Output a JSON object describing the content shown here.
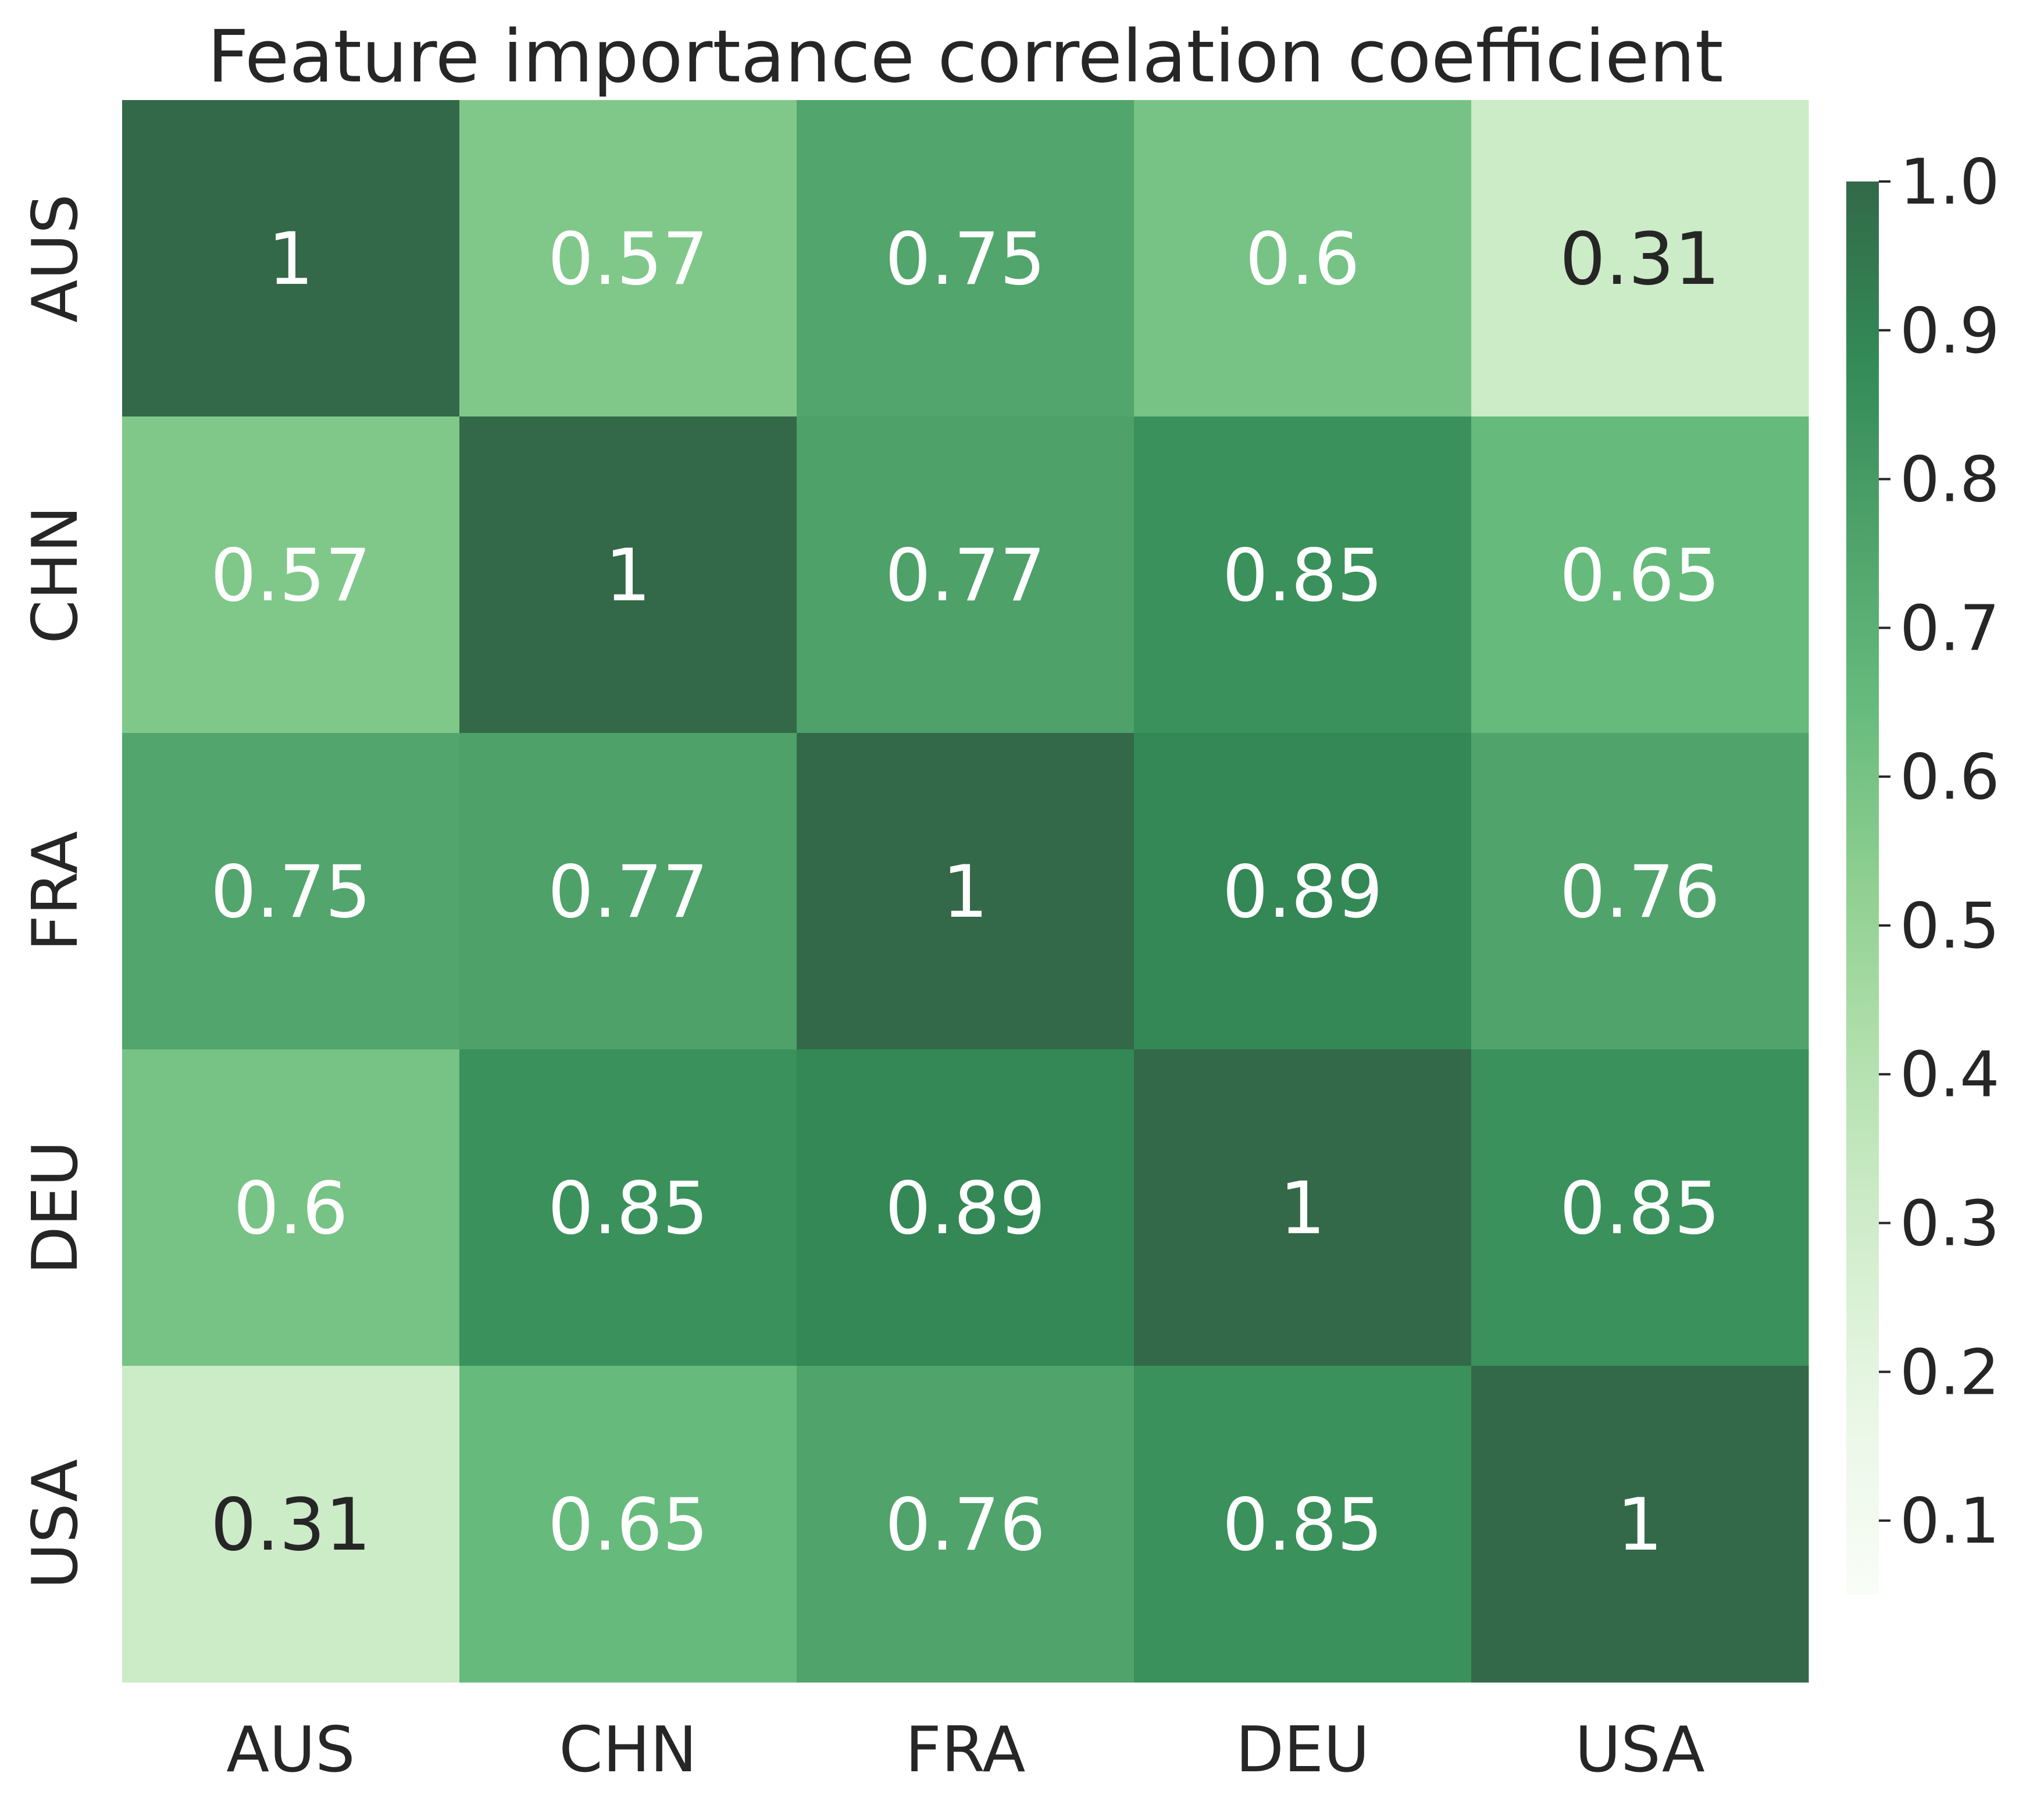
{
  "chart_data": {
    "type": "heatmap",
    "title": "Feature importance correlation coefficient",
    "x_categories": [
      "AUS",
      "CHN",
      "FRA",
      "DEU",
      "USA"
    ],
    "y_categories": [
      "AUS",
      "CHN",
      "FRA",
      "DEU",
      "USA"
    ],
    "values": [
      [
        1,
        0.57,
        0.75,
        0.6,
        0.31
      ],
      [
        0.57,
        1,
        0.77,
        0.85,
        0.65
      ],
      [
        0.75,
        0.77,
        1,
        0.89,
        0.76
      ],
      [
        0.6,
        0.85,
        0.89,
        1,
        0.85
      ],
      [
        0.31,
        0.65,
        0.76,
        0.85,
        1
      ]
    ],
    "annotations": [
      [
        "1",
        "0.57",
        "0.75",
        "0.6",
        "0.31"
      ],
      [
        "0.57",
        "1",
        "0.77",
        "0.85",
        "0.65"
      ],
      [
        "0.75",
        "0.77",
        "1",
        "0.89",
        "0.76"
      ],
      [
        "0.6",
        "0.85",
        "0.89",
        "1",
        "0.85"
      ],
      [
        "0.31",
        "0.65",
        "0.76",
        "0.85",
        "1"
      ]
    ],
    "colorbar": {
      "range": [
        0.05,
        1.0
      ],
      "ticks": [
        "0.1",
        "0.2",
        "0.3",
        "0.4",
        "0.5",
        "0.6",
        "0.7",
        "0.8",
        "0.9",
        "1.0"
      ],
      "colormap": "Greens",
      "colors": [
        "#f7fcf5",
        "#e5f5e0",
        "#c7e9c0",
        "#a1d99b",
        "#74c476",
        "#41ab5d",
        "#238b45",
        "#006d2c",
        "#00441b"
      ],
      "alpha": 0.8
    },
    "annotation_colors": {
      "dark": "#262626",
      "light": "#ffffff"
    }
  }
}
